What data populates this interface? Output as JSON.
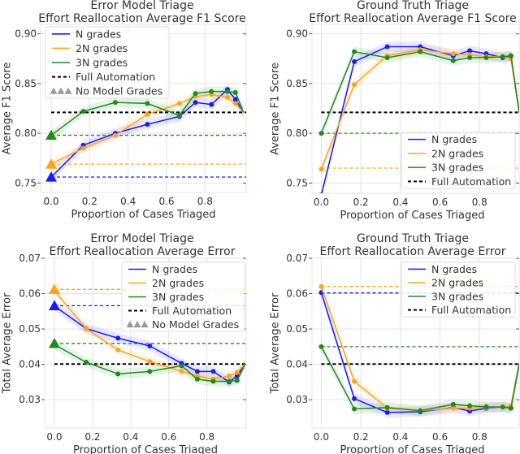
{
  "chart_data": [
    {
      "type": "line",
      "title_lines": [
        "Error Model Triage",
        "Effort Reallocation Average F1 Score"
      ],
      "xlabel": "Proportion of Cases Triaged",
      "ylabel": "Average F1 Score",
      "xlim": [
        -0.055,
        1.014
      ],
      "ylim": [
        0.7405,
        0.9095
      ],
      "xticks": [
        0,
        0.2,
        0.4,
        0.6,
        0.8
      ],
      "xtick_labels": [
        "0.0",
        "0.2",
        "0.4",
        "0.6",
        "0.8"
      ],
      "yticks": [
        0.75,
        0.8,
        0.85,
        0.9
      ],
      "ytick_labels": [
        "0.75",
        "0.80",
        "0.85",
        "0.90"
      ],
      "grid": true,
      "legend_placement": "upper-left",
      "x": [
        0,
        0.1667,
        0.3333,
        0.5,
        0.6667,
        0.75,
        0.8333,
        0.9167,
        0.9583,
        1.0
      ],
      "series": [
        {
          "name": "N grades",
          "color": "#1a1aff",
          "values": [
            0.756,
            0.788,
            0.8,
            0.809,
            0.817,
            0.831,
            0.829,
            0.844,
            0.834,
            0.821
          ],
          "no_model_grades": 0.756
        },
        {
          "name": "2N grades",
          "color": "#ffa31a",
          "values": [
            0.769,
            0.785,
            0.798,
            0.819,
            0.83,
            0.837,
            0.839,
            0.836,
            0.83,
            0.821
          ],
          "no_model_grades": 0.769
        },
        {
          "name": "3N grades",
          "color": "#1f8a1f",
          "values": [
            0.798,
            0.822,
            0.831,
            0.83,
            0.818,
            0.84,
            0.842,
            0.842,
            0.841,
            0.821
          ],
          "no_model_grades": 0.798
        }
      ],
      "reference": {
        "name": "Full Automation",
        "value": 0.821,
        "color": "#000000"
      },
      "no_model_grades_label": "No Model Grades",
      "marker_color_legend": "#999999"
    },
    {
      "type": "line",
      "title_lines": [
        "Ground Truth Triage",
        "Effort Reallocation Average F1 Score"
      ],
      "xlabel": "Proportion of Cases Triaged",
      "ylabel": "Average F1 Score",
      "xlim": [
        -0.047,
        1.0
      ],
      "ylim": [
        0.7397,
        0.9095
      ],
      "xticks": [
        0,
        0.2,
        0.4,
        0.6,
        0.8
      ],
      "xtick_labels": [
        "0.0",
        "0.2",
        "0.4",
        "0.6",
        "0.8"
      ],
      "yticks": [
        0.75,
        0.8,
        0.85,
        0.9
      ],
      "ytick_labels": [
        "0.75",
        "0.80",
        "0.85",
        "0.90"
      ],
      "grid": true,
      "legend_placement": "lower-right",
      "x": [
        0,
        0.1667,
        0.3333,
        0.5,
        0.6667,
        0.75,
        0.8333,
        0.9167,
        0.9583,
        1.0
      ],
      "series": [
        {
          "name": "N grades",
          "color": "#1a1aff",
          "values": [
            0.738,
            0.872,
            0.887,
            0.887,
            0.878,
            0.883,
            0.88,
            0.876,
            0.878,
            0.821
          ],
          "no_model_grades": 0.738
        },
        {
          "name": "2N grades",
          "color": "#ffa31a",
          "values": [
            0.764,
            0.849,
            0.878,
            0.884,
            0.88,
            0.879,
            0.877,
            0.877,
            0.875,
            0.821
          ],
          "no_model_grades": 0.765
        },
        {
          "name": "3N grades",
          "color": "#1f8a1f",
          "values": [
            0.8,
            0.882,
            0.876,
            0.882,
            0.873,
            0.876,
            0.876,
            0.877,
            0.878,
            0.821
          ],
          "no_model_grades": 0.8
        }
      ],
      "reference": {
        "name": "Full Automation",
        "value": 0.821,
        "color": "#000000"
      }
    },
    {
      "type": "line",
      "title_lines": [
        "Error Model Triage",
        "Effort Reallocation Average Error"
      ],
      "xlabel": "Proportion of Cases Triaged",
      "ylabel": "Total Average Error",
      "xlim": [
        -0.051,
        1.006
      ],
      "ylim": [
        0.022,
        0.07
      ],
      "xticks": [
        0,
        0.2,
        0.4,
        0.6,
        0.8
      ],
      "xtick_labels": [
        "0.0",
        "0.2",
        "0.4",
        "0.6",
        "0.8"
      ],
      "yticks": [
        0.03,
        0.04,
        0.05,
        0.06,
        0.07
      ],
      "ytick_labels": [
        "0.03",
        "0.04",
        "0.05",
        "0.06",
        "0.07"
      ],
      "grid": true,
      "legend_placement": "upper-right",
      "x": [
        0,
        0.1667,
        0.3333,
        0.5,
        0.6667,
        0.75,
        0.8333,
        0.9167,
        0.9583,
        1.0
      ],
      "series": [
        {
          "name": "N grades",
          "color": "#1a1aff",
          "values": [
            0.0565,
            0.0501,
            0.0474,
            0.0452,
            0.0403,
            0.038,
            0.038,
            0.035,
            0.0367,
            0.0401
          ],
          "no_model_grades": 0.0566
        },
        {
          "name": "2N grades",
          "color": "#ffa31a",
          "values": [
            0.0608,
            0.0501,
            0.0441,
            0.0408,
            0.038,
            0.0367,
            0.0358,
            0.0367,
            0.0377,
            0.0401
          ],
          "no_model_grades": 0.0612
        },
        {
          "name": "3N grades",
          "color": "#1f8a1f",
          "values": [
            0.0456,
            0.0406,
            0.0373,
            0.038,
            0.0396,
            0.0358,
            0.0352,
            0.0352,
            0.0354,
            0.0401
          ],
          "no_model_grades": 0.0459
        }
      ],
      "reference": {
        "name": "Full Automation",
        "value": 0.0401,
        "color": "#000000"
      },
      "no_model_grades_label": "No Model Grades",
      "marker_color_legend": "#999999"
    },
    {
      "type": "line",
      "title_lines": [
        "Ground Truth Triage",
        "Effort Reallocation Average Error"
      ],
      "xlabel": "Proportion of Cases Triaged",
      "ylabel": "Total Average Error",
      "xlim": [
        -0.047,
        1.0
      ],
      "ylim": [
        0.022,
        0.07
      ],
      "xticks": [
        0,
        0.2,
        0.4,
        0.6,
        0.8
      ],
      "xtick_labels": [
        "0.0",
        "0.2",
        "0.4",
        "0.6",
        "0.8"
      ],
      "yticks": [
        0.03,
        0.04,
        0.05,
        0.06,
        0.07
      ],
      "ytick_labels": [
        "0.03",
        "0.04",
        "0.05",
        "0.06",
        "0.07"
      ],
      "grid": true,
      "legend_placement": "upper-right",
      "x": [
        0,
        0.1667,
        0.3333,
        0.5,
        0.6667,
        0.75,
        0.8333,
        0.9167,
        0.9583,
        1.0
      ],
      "series": [
        {
          "name": "N grades",
          "color": "#1a1aff",
          "values": [
            0.0603,
            0.0303,
            0.0264,
            0.0266,
            0.0278,
            0.0268,
            0.0276,
            0.028,
            0.0276,
            0.0401
          ],
          "no_model_grades": 0.0602
        },
        {
          "name": "2N grades",
          "color": "#ffa31a",
          "values": [
            0.062,
            0.0352,
            0.0276,
            0.0269,
            0.0276,
            0.0276,
            0.0278,
            0.028,
            0.0282,
            0.0401
          ],
          "no_model_grades": 0.062
        },
        {
          "name": "3N grades",
          "color": "#1f8a1f",
          "values": [
            0.045,
            0.0274,
            0.0278,
            0.0269,
            0.0287,
            0.0283,
            0.028,
            0.0279,
            0.0276,
            0.0401
          ],
          "no_model_grades": 0.045
        }
      ],
      "reference": {
        "name": "Full Automation",
        "value": 0.0401,
        "color": "#000000"
      }
    }
  ]
}
